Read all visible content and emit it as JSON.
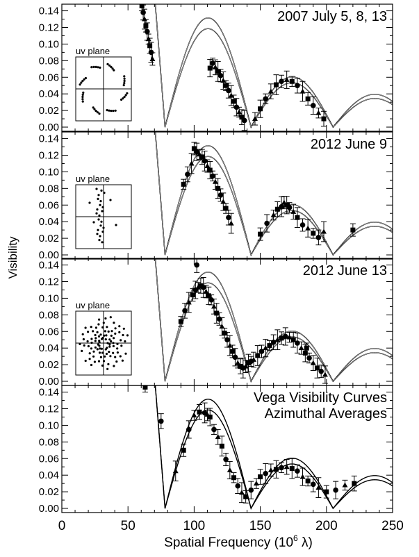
{
  "figure": {
    "ylabel": "Visibility",
    "xlabel_main": "Spatial Frequency (10",
    "xlabel_sup": "6",
    "xlabel_end": " λ)",
    "inset_label": "uv plane"
  },
  "chart_data": {
    "type": "scatter",
    "xlim": [
      0,
      250
    ],
    "ylim": [
      -0.005,
      0.148
    ],
    "x_ticks": [
      "0",
      "50",
      "100",
      "150",
      "200",
      "250"
    ],
    "y_ticks": [
      "0.00",
      "0.02",
      "0.04",
      "0.06",
      "0.08",
      "0.10",
      "0.12",
      "0.14"
    ],
    "model_curves": {
      "description_free": true,
      "upper_peaks": [
        1.0,
        0.1315,
        0.0605,
        0.0395
      ],
      "lower_peaks": [
        1.0,
        0.1185,
        0.0535,
        0.0345
      ],
      "zeros": [
        78,
        143,
        205
      ]
    },
    "panels": [
      {
        "label": "2007 July 5, 8, 13",
        "uv_inset": true,
        "data_x_ranges": [
          [
            60,
            72
          ],
          [
            110,
            140
          ],
          [
            142,
            200
          ]
        ],
        "points": [
          [
            60.5,
            0.146
          ],
          [
            61.5,
            0.138
          ],
          [
            62.5,
            0.13
          ],
          [
            63.5,
            0.122
          ],
          [
            64.5,
            0.115
          ],
          [
            65.5,
            0.106
          ],
          [
            66.5,
            0.098
          ],
          [
            67.5,
            0.09
          ],
          [
            68.5,
            0.082
          ],
          [
            112,
            0.071
          ],
          [
            114,
            0.077
          ],
          [
            116,
            0.072
          ],
          [
            118,
            0.067
          ],
          [
            120,
            0.062
          ],
          [
            122,
            0.056
          ],
          [
            124,
            0.05
          ],
          [
            126,
            0.044
          ],
          [
            128,
            0.038
          ],
          [
            130,
            0.031
          ],
          [
            132,
            0.024
          ],
          [
            134,
            0.018
          ],
          [
            136,
            0.012
          ],
          [
            138,
            0.008
          ],
          [
            146,
            0.01
          ],
          [
            150,
            0.022
          ],
          [
            154,
            0.034
          ],
          [
            158,
            0.043
          ],
          [
            162,
            0.051
          ],
          [
            166,
            0.055
          ],
          [
            170,
            0.057
          ],
          [
            174,
            0.055
          ],
          [
            178,
            0.05
          ],
          [
            182,
            0.043
          ],
          [
            186,
            0.034
          ],
          [
            190,
            0.026
          ],
          [
            194,
            0.017
          ],
          [
            198,
            0.01
          ]
        ]
      },
      {
        "label": "2012 June 9",
        "uv_inset": true,
        "points": [
          [
            92,
            0.085
          ],
          [
            95,
            0.097
          ],
          [
            98,
            0.11
          ],
          [
            100,
            0.128
          ],
          [
            102,
            0.124
          ],
          [
            104,
            0.121
          ],
          [
            106,
            0.118
          ],
          [
            108,
            0.113
          ],
          [
            110,
            0.107
          ],
          [
            112,
            0.102
          ],
          [
            114,
            0.095
          ],
          [
            116,
            0.088
          ],
          [
            118,
            0.08
          ],
          [
            120,
            0.072
          ],
          [
            122,
            0.064
          ],
          [
            124,
            0.056
          ],
          [
            126,
            0.045
          ],
          [
            128,
            0.038
          ],
          [
            150,
            0.025
          ],
          [
            155,
            0.038
          ],
          [
            160,
            0.048
          ],
          [
            163,
            0.055
          ],
          [
            166,
            0.058
          ],
          [
            168,
            0.063
          ],
          [
            170,
            0.06
          ],
          [
            172,
            0.057
          ],
          [
            175,
            0.052
          ],
          [
            178,
            0.045
          ],
          [
            182,
            0.036
          ],
          [
            186,
            0.032
          ],
          [
            190,
            0.026
          ],
          [
            194,
            0.021
          ],
          [
            198,
            0.028
          ],
          [
            220,
            0.03
          ]
        ]
      },
      {
        "label": "2012 June 13",
        "uv_inset": true,
        "points": [
          [
            90,
            0.072
          ],
          [
            93,
            0.085
          ],
          [
            96,
            0.095
          ],
          [
            99,
            0.104
          ],
          [
            101,
            0.11
          ],
          [
            103,
            0.113
          ],
          [
            105,
            0.115
          ],
          [
            107,
            0.113
          ],
          [
            109,
            0.108
          ],
          [
            111,
            0.103
          ],
          [
            113,
            0.098
          ],
          [
            115,
            0.09
          ],
          [
            117,
            0.082
          ],
          [
            119,
            0.075
          ],
          [
            121,
            0.066
          ],
          [
            123,
            0.058
          ],
          [
            125,
            0.05
          ],
          [
            127,
            0.043
          ],
          [
            129,
            0.036
          ],
          [
            131,
            0.029
          ],
          [
            133,
            0.022
          ],
          [
            135,
            0.018
          ],
          [
            137,
            0.016
          ],
          [
            139,
            0.018
          ],
          [
            141,
            0.022
          ],
          [
            143,
            0.024
          ],
          [
            145,
            0.026
          ],
          [
            148,
            0.031
          ],
          [
            151,
            0.036
          ],
          [
            154,
            0.04
          ],
          [
            157,
            0.043
          ],
          [
            160,
            0.047
          ],
          [
            163,
            0.05
          ],
          [
            166,
            0.052
          ],
          [
            169,
            0.054
          ],
          [
            172,
            0.053
          ],
          [
            175,
            0.05
          ],
          [
            178,
            0.046
          ],
          [
            181,
            0.04
          ],
          [
            184,
            0.034
          ],
          [
            187,
            0.028
          ],
          [
            190,
            0.022
          ],
          [
            193,
            0.016
          ],
          [
            196,
            0.012
          ],
          [
            199,
            0.008
          ],
          [
            185,
            0.04
          ],
          [
            102,
            0.14
          ]
        ]
      },
      {
        "label": "Vega Visibility Curves",
        "label2": "Azimuthal Averages",
        "uv_inset": false,
        "points": [
          [
            63,
            0.146
          ],
          [
            75,
            0.105
          ],
          [
            86,
            0.045
          ],
          [
            92,
            0.07
          ],
          [
            96,
            0.095
          ],
          [
            100,
            0.112
          ],
          [
            104,
            0.116
          ],
          [
            108,
            0.115
          ],
          [
            110,
            0.113
          ],
          [
            112,
            0.11
          ],
          [
            115,
            0.095
          ],
          [
            118,
            0.086
          ],
          [
            121,
            0.075
          ],
          [
            124,
            0.059
          ],
          [
            127,
            0.046
          ],
          [
            130,
            0.037
          ],
          [
            133,
            0.027
          ],
          [
            136,
            0.019
          ],
          [
            139,
            0.014
          ],
          [
            143,
            0.022
          ],
          [
            147,
            0.03
          ],
          [
            150,
            0.038
          ],
          [
            154,
            0.042
          ],
          [
            158,
            0.046
          ],
          [
            162,
            0.047
          ],
          [
            166,
            0.049
          ],
          [
            170,
            0.05
          ],
          [
            174,
            0.048
          ],
          [
            178,
            0.045
          ],
          [
            182,
            0.038
          ],
          [
            186,
            0.033
          ],
          [
            190,
            0.029
          ],
          [
            194,
            0.025
          ],
          [
            200,
            0.02
          ],
          [
            207,
            0.022
          ],
          [
            214,
            0.028
          ],
          [
            221,
            0.03
          ]
        ]
      }
    ]
  }
}
